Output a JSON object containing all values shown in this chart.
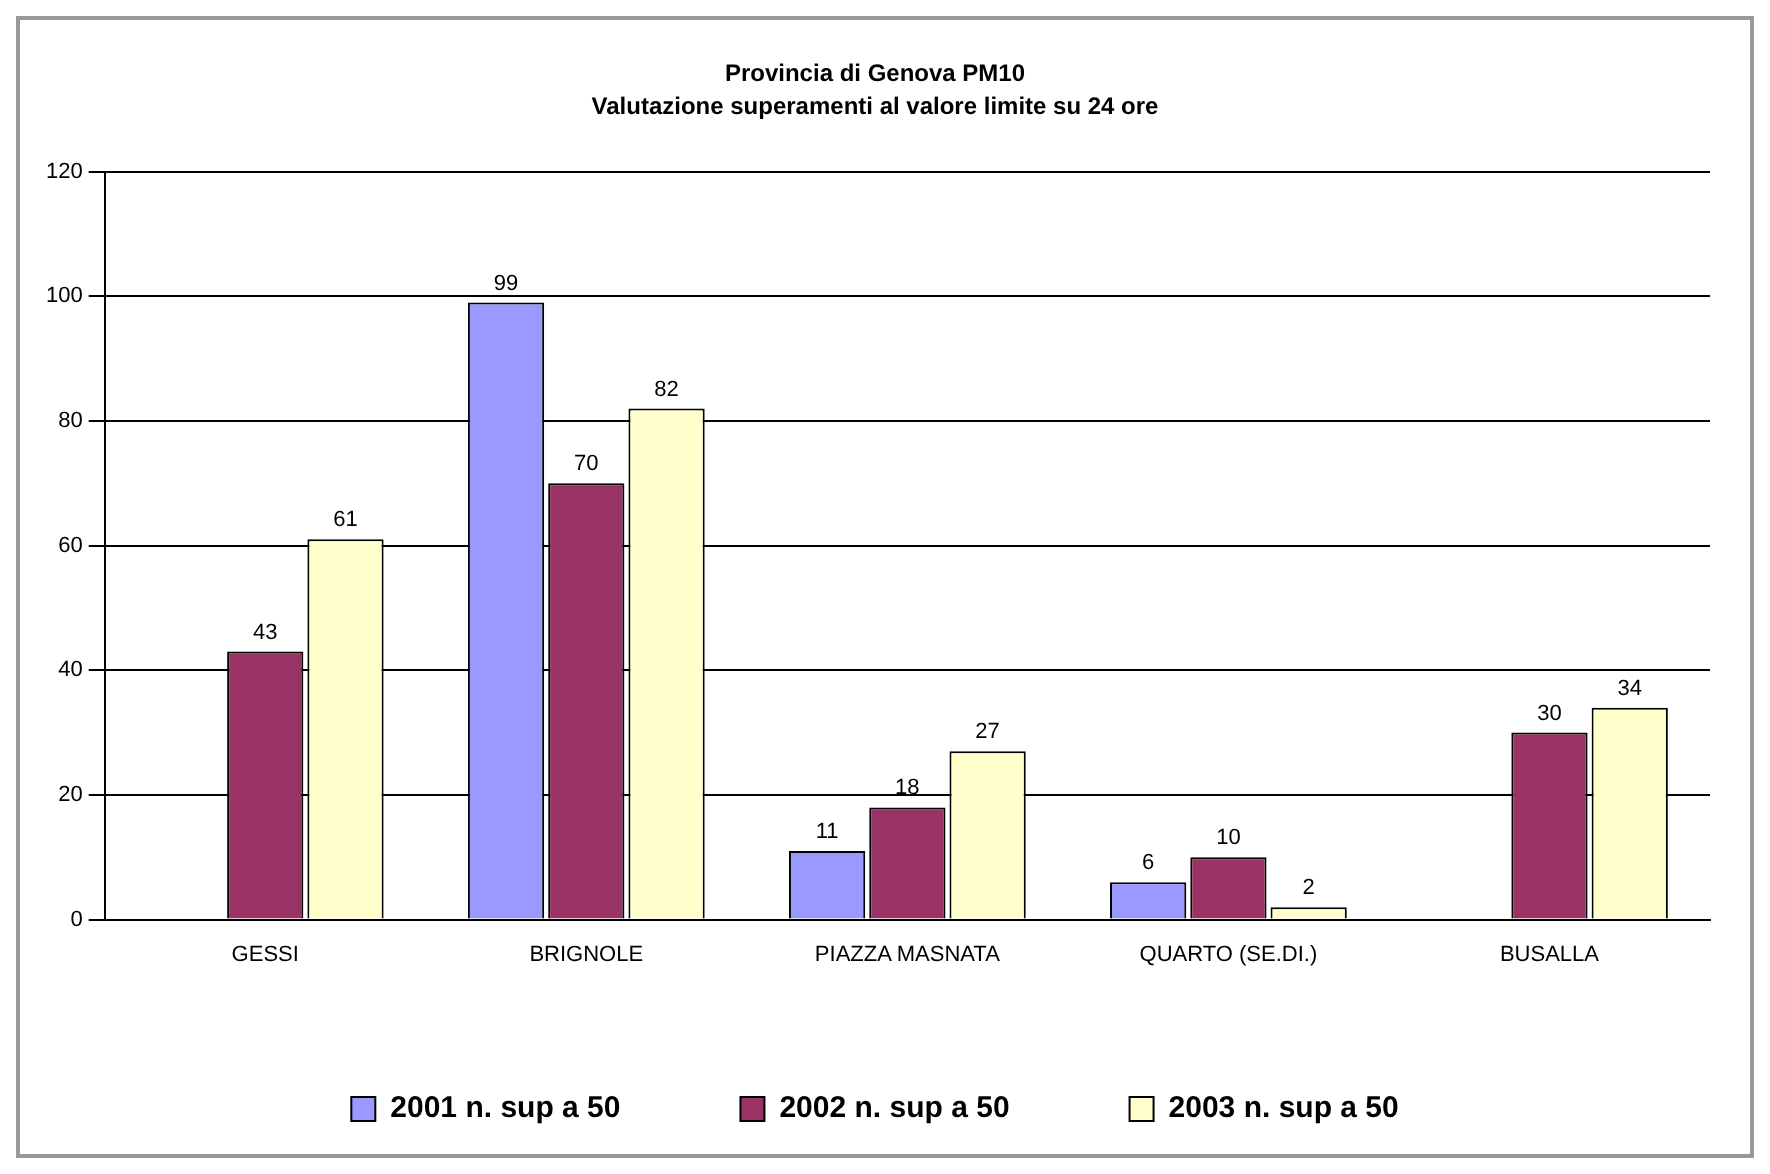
{
  "chart_data": {
    "type": "bar",
    "title": "Provincia di Genova PM10",
    "subtitle": "Valutazione superamenti al valore limite su 24 ore",
    "categories": [
      "GESSI",
      "BRIGNOLE",
      "PIAZZA MASNATA",
      "QUARTO (SE.DI.)",
      "BUSALLA"
    ],
    "series": [
      {
        "name": "2001 n. sup a 50",
        "color": "#9999ff",
        "values": [
          null,
          99,
          11,
          6,
          null
        ]
      },
      {
        "name": "2002 n. sup a 50",
        "color": "#993366",
        "values": [
          43,
          70,
          18,
          10,
          30
        ]
      },
      {
        "name": "2003 n. sup a 50",
        "color": "#ffffcc",
        "values": [
          61,
          82,
          27,
          2,
          34
        ]
      }
    ],
    "ylim": [
      0,
      120
    ],
    "yticks": [
      0,
      20,
      40,
      60,
      80,
      100,
      120
    ],
    "grid": "y",
    "legend": "bottom",
    "data_labels": true
  }
}
